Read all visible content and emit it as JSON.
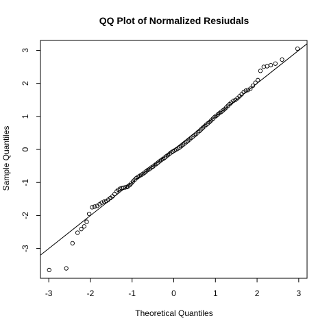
{
  "chart_data": {
    "type": "scatter",
    "title": "QQ Plot of Normalized Resiudals",
    "xlabel": "Theoretical Quantiles",
    "ylabel": "Sample Quantiles",
    "xlim": [
      -3.2,
      3.2
    ],
    "ylim": [
      -3.9,
      3.3
    ],
    "xticks": [
      "-3",
      "-2",
      "-1",
      "0",
      "1",
      "2",
      "3"
    ],
    "yticks": [
      "-3",
      "-2",
      "-1",
      "0",
      "1",
      "2",
      "3"
    ],
    "grid": false,
    "marker": "open-circle",
    "reference_line": {
      "x": [
        -3.2,
        3.2
      ],
      "y": [
        -3.2,
        3.2
      ]
    },
    "points": [
      [
        -2.99,
        -3.65
      ],
      [
        -2.58,
        -3.6
      ],
      [
        -2.43,
        -2.84
      ],
      [
        -2.31,
        -2.52
      ],
      [
        -2.22,
        -2.41
      ],
      [
        -2.15,
        -2.33
      ],
      [
        -2.09,
        -2.19
      ],
      [
        -2.03,
        -1.95
      ],
      [
        -1.96,
        -1.75
      ],
      [
        -1.9,
        -1.73
      ],
      [
        -1.84,
        -1.71
      ],
      [
        -1.78,
        -1.66
      ],
      [
        -1.73,
        -1.61
      ],
      [
        -1.67,
        -1.58
      ],
      [
        -1.62,
        -1.56
      ],
      [
        -1.57,
        -1.52
      ],
      [
        -1.52,
        -1.47
      ],
      [
        -1.47,
        -1.42
      ],
      [
        -1.42,
        -1.35
      ],
      [
        -1.37,
        -1.27
      ],
      [
        -1.33,
        -1.22
      ],
      [
        -1.29,
        -1.19
      ],
      [
        -1.25,
        -1.17
      ],
      [
        -1.21,
        -1.16
      ],
      [
        -1.17,
        -1.15
      ],
      [
        -1.13,
        -1.14
      ],
      [
        -1.1,
        -1.12
      ],
      [
        -1.06,
        -1.08
      ],
      [
        -1.02,
        -1.03
      ],
      [
        -0.98,
        -0.97
      ],
      [
        -0.94,
        -0.92
      ],
      [
        -0.9,
        -0.87
      ],
      [
        -0.86,
        -0.83
      ],
      [
        -0.82,
        -0.8
      ],
      [
        -0.78,
        -0.77
      ],
      [
        -0.74,
        -0.74
      ],
      [
        -0.7,
        -0.7
      ],
      [
        -0.66,
        -0.66
      ],
      [
        -0.62,
        -0.62
      ],
      [
        -0.58,
        -0.59
      ],
      [
        -0.54,
        -0.55
      ],
      [
        -0.5,
        -0.52
      ],
      [
        -0.46,
        -0.48
      ],
      [
        -0.42,
        -0.44
      ],
      [
        -0.38,
        -0.4
      ],
      [
        -0.34,
        -0.36
      ],
      [
        -0.3,
        -0.32
      ],
      [
        -0.26,
        -0.29
      ],
      [
        -0.22,
        -0.25
      ],
      [
        -0.18,
        -0.21
      ],
      [
        -0.14,
        -0.17
      ],
      [
        -0.1,
        -0.13
      ],
      [
        -0.06,
        -0.09
      ],
      [
        -0.02,
        -0.06
      ],
      [
        0.02,
        -0.03
      ],
      [
        0.06,
        0.0
      ],
      [
        0.1,
        0.03
      ],
      [
        0.14,
        0.06
      ],
      [
        0.18,
        0.1
      ],
      [
        0.22,
        0.14
      ],
      [
        0.26,
        0.18
      ],
      [
        0.3,
        0.22
      ],
      [
        0.34,
        0.26
      ],
      [
        0.38,
        0.3
      ],
      [
        0.42,
        0.35
      ],
      [
        0.46,
        0.39
      ],
      [
        0.5,
        0.43
      ],
      [
        0.54,
        0.47
      ],
      [
        0.58,
        0.52
      ],
      [
        0.62,
        0.56
      ],
      [
        0.66,
        0.61
      ],
      [
        0.7,
        0.66
      ],
      [
        0.74,
        0.7
      ],
      [
        0.78,
        0.75
      ],
      [
        0.82,
        0.79
      ],
      [
        0.86,
        0.83
      ],
      [
        0.9,
        0.88
      ],
      [
        0.94,
        0.93
      ],
      [
        0.98,
        0.98
      ],
      [
        1.02,
        1.02
      ],
      [
        1.06,
        1.06
      ],
      [
        1.1,
        1.1
      ],
      [
        1.14,
        1.14
      ],
      [
        1.18,
        1.18
      ],
      [
        1.22,
        1.22
      ],
      [
        1.26,
        1.27
      ],
      [
        1.3,
        1.32
      ],
      [
        1.34,
        1.37
      ],
      [
        1.38,
        1.42
      ],
      [
        1.43,
        1.47
      ],
      [
        1.48,
        1.5
      ],
      [
        1.53,
        1.55
      ],
      [
        1.58,
        1.61
      ],
      [
        1.63,
        1.67
      ],
      [
        1.68,
        1.74
      ],
      [
        1.73,
        1.78
      ],
      [
        1.78,
        1.8
      ],
      [
        1.84,
        1.84
      ],
      [
        1.9,
        1.93
      ],
      [
        1.96,
        2.02
      ],
      [
        2.02,
        2.1
      ],
      [
        2.08,
        2.38
      ],
      [
        2.16,
        2.5
      ],
      [
        2.24,
        2.52
      ],
      [
        2.33,
        2.55
      ],
      [
        2.44,
        2.6
      ],
      [
        2.6,
        2.72
      ],
      [
        2.97,
        3.05
      ]
    ]
  }
}
